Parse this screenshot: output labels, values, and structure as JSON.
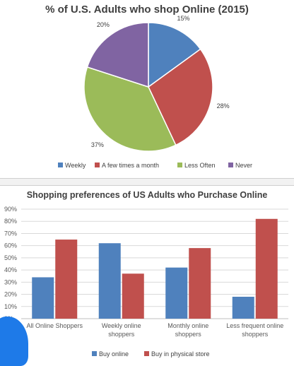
{
  "chart_data": [
    {
      "type": "pie",
      "title": "% of U.S. Adults who shop Online (2015)",
      "categories": [
        "Weekly",
        "A few times a month",
        "Less Often",
        "Never"
      ],
      "values": [
        15,
        28,
        37,
        20
      ],
      "labels": [
        "15%",
        "28%",
        "37%",
        "20%"
      ],
      "colors": [
        "#4f81bd",
        "#c0504d",
        "#9bbb59",
        "#8064a2"
      ],
      "legend": "bottom"
    },
    {
      "type": "bar",
      "title": "Shopping preferences of US Adults who Purchase Online",
      "categories": [
        [
          "All Online Shoppers"
        ],
        [
          "Weekly online",
          "shoppers"
        ],
        [
          "Monthly online",
          "shoppers"
        ],
        [
          "Less frequent online",
          "shoppers"
        ]
      ],
      "series": [
        {
          "name": "Buy online",
          "values": [
            34,
            62,
            42,
            18
          ],
          "color": "#4f81bd"
        },
        {
          "name": "Buy in physical store",
          "values": [
            65,
            37,
            58,
            82
          ],
          "color": "#c0504d"
        }
      ],
      "ylim": [
        0,
        90
      ],
      "yticks": [
        "0%",
        "10%",
        "20%",
        "30%",
        "40%",
        "50%",
        "60%",
        "70%",
        "80%",
        "90%"
      ],
      "grid": true,
      "legend": "bottom"
    }
  ]
}
